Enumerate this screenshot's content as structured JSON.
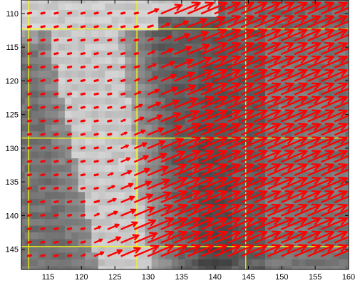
{
  "chart_data": {
    "type": "quiver",
    "xlim": [
      111,
      160
    ],
    "ylim": [
      108,
      148
    ],
    "y_reversed": true,
    "x_ticks": [
      115,
      120,
      125,
      130,
      135,
      140,
      145,
      150,
      155,
      160
    ],
    "y_ticks": [
      110,
      115,
      120,
      125,
      130,
      135,
      140,
      145
    ],
    "grid_lines": {
      "color": "#ffff00",
      "x": [
        112.1,
        128.3,
        144.6
      ],
      "y": [
        112.3,
        128.5,
        144.6
      ]
    },
    "background": "grayscale image",
    "arrow_color": "#ff0000",
    "arrow_grid": {
      "x_start": 112,
      "x_step": 2,
      "x_count": 24,
      "y_start": 110,
      "y_step": 2,
      "y_count": 19
    }
  },
  "colors": {
    "axis": "#000000",
    "arrow": "#ff0000",
    "grid": "#ffff00"
  }
}
